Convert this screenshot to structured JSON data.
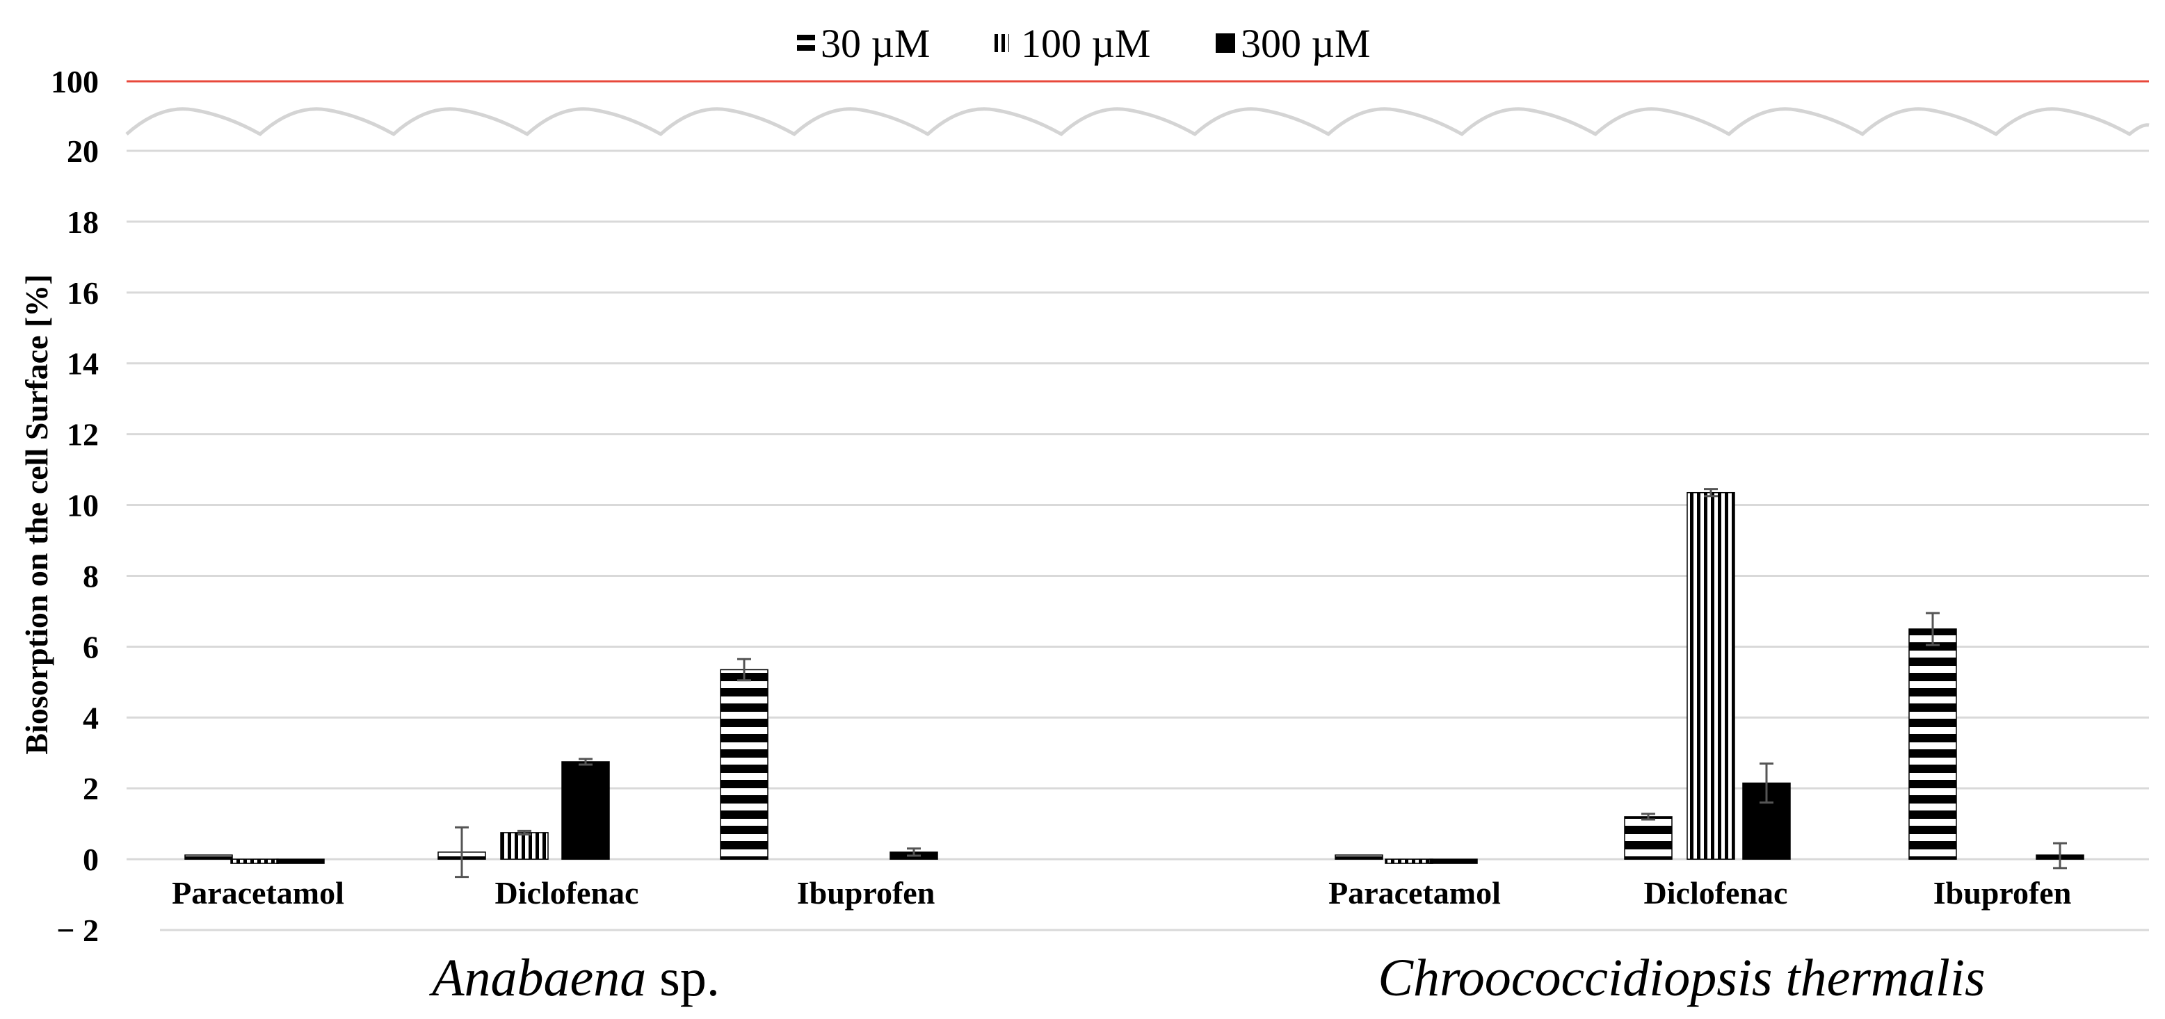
{
  "chart_data": {
    "type": "bar",
    "ylabel": "Biosorption on the cell Surface [%]",
    "xlabel": "",
    "title": "",
    "ylim": [
      -2,
      20
    ],
    "yticks": [
      -2,
      0,
      2,
      4,
      6,
      8,
      10,
      12,
      14,
      16,
      18,
      20
    ],
    "ytick_labels": [
      "− 2",
      "0",
      "2",
      "4",
      "6",
      "8",
      "10",
      "12",
      "14",
      "16",
      "18",
      "20"
    ],
    "axis_break": {
      "label": "100",
      "reference_value": 100,
      "reference_color": "#e8483b"
    },
    "legend": {
      "position": "top-center",
      "entries": [
        {
          "name": "30 µM",
          "pattern": "horizontal-stripes"
        },
        {
          "name": "100 µM",
          "pattern": "vertical-stripes"
        },
        {
          "name": "300 µM",
          "pattern": "solid"
        }
      ]
    },
    "groups": [
      {
        "name_italic": "Anabaena",
        "name_suffix": " sp.",
        "categories": [
          "Paracetamol",
          "Diclofenac",
          "Ibuprofen"
        ],
        "series": [
          {
            "name": "30 µM",
            "values": [
              0.08,
              0.2,
              5.35
            ],
            "errors": [
              0,
              0.7,
              0.3
            ]
          },
          {
            "name": "100 µM",
            "values": [
              -0.08,
              0.75,
              null
            ],
            "errors": [
              0,
              0.05,
              0
            ]
          },
          {
            "name": "300 µM",
            "values": [
              -0.05,
              2.75,
              0.2
            ],
            "errors": [
              0,
              0.08,
              0.1
            ]
          }
        ]
      },
      {
        "name_italic": "Chroococcidiopsis thermalis",
        "name_suffix": "",
        "categories": [
          "Paracetamol",
          "Diclofenac",
          "Ibuprofen"
        ],
        "series": [
          {
            "name": "30 µM",
            "values": [
              0.05,
              1.2,
              6.5
            ],
            "errors": [
              0,
              0.08,
              0.45
            ]
          },
          {
            "name": "100 µM",
            "values": [
              -0.1,
              10.35,
              null
            ],
            "errors": [
              0,
              0.1,
              0
            ]
          },
          {
            "name": "300 µM",
            "values": [
              -0.08,
              2.15,
              0.1
            ],
            "errors": [
              0,
              0.55,
              0.35
            ]
          }
        ]
      }
    ]
  }
}
